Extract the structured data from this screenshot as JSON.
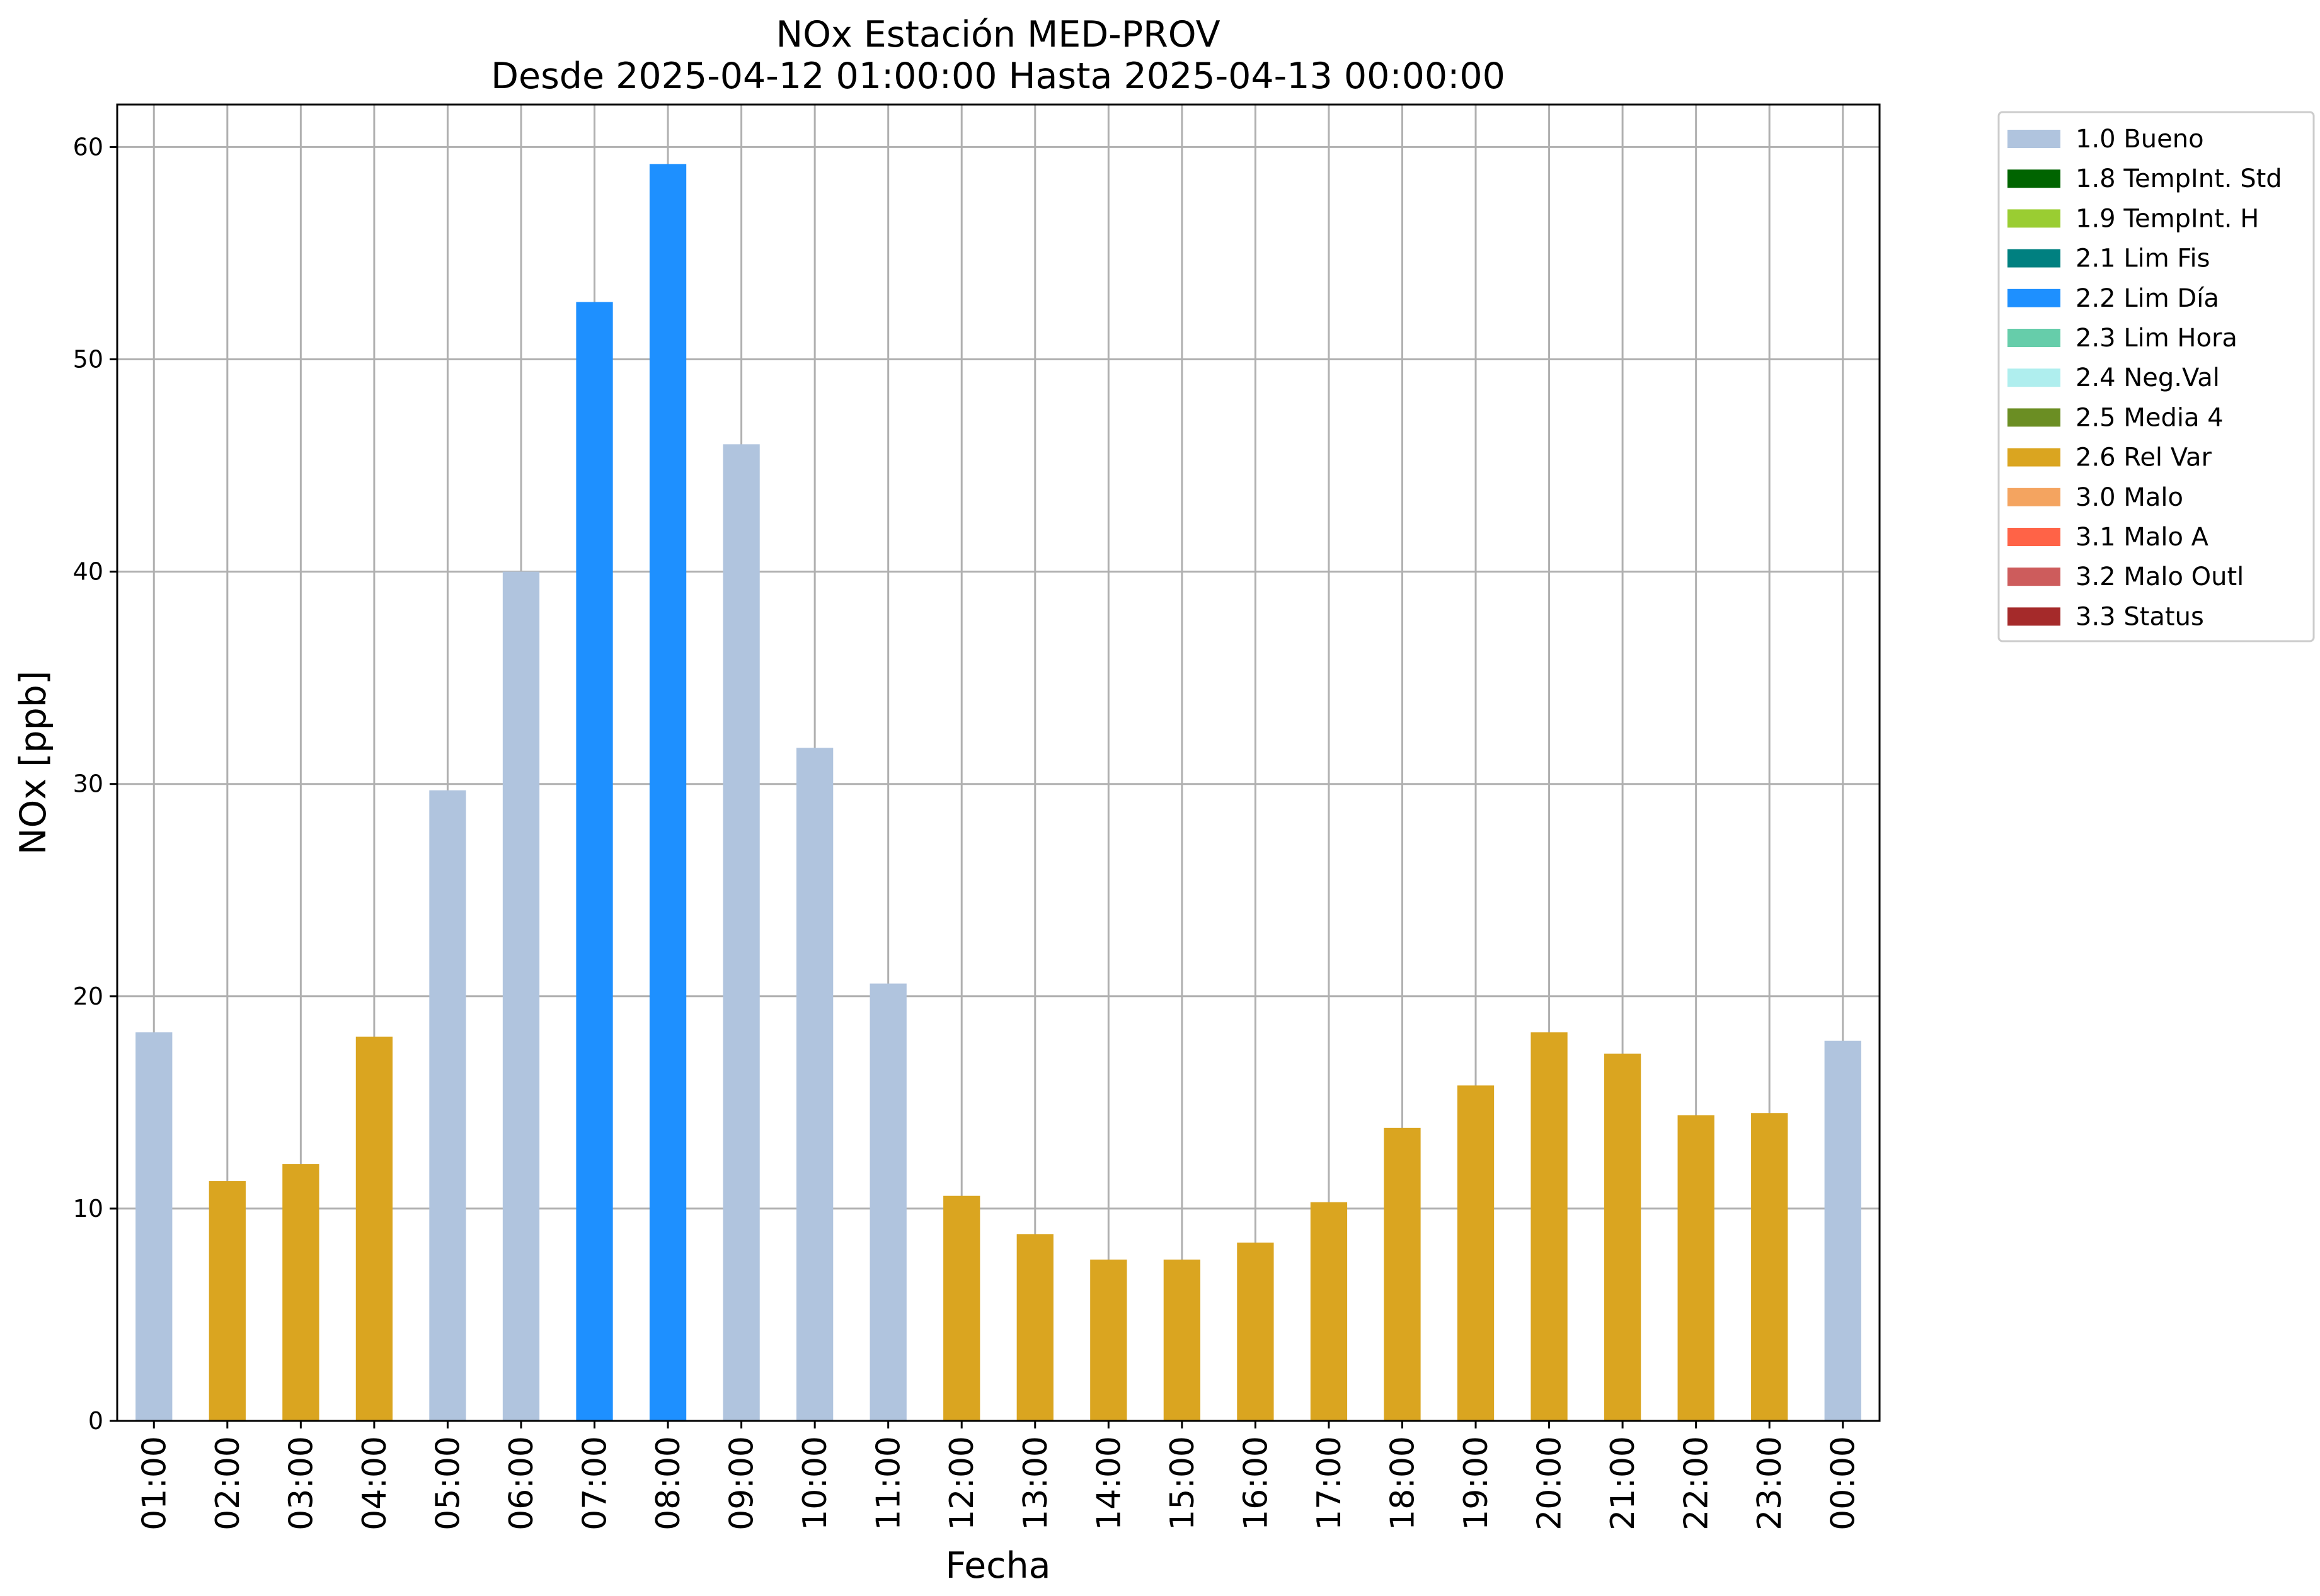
{
  "chart_data": {
    "type": "bar",
    "title": "NOx Estación MED-PROV",
    "subtitle": "Desde 2025-04-12 01:00:00 Hasta 2025-04-13 00:00:00",
    "xlabel": "Fecha",
    "ylabel": "NOx [ppb]",
    "ylim": [
      0,
      62
    ],
    "yticks": [
      0,
      10,
      20,
      30,
      40,
      50,
      60
    ],
    "grid": true,
    "legend_position": "outside-top-right",
    "categories": [
      "01:00",
      "02:00",
      "03:00",
      "04:00",
      "05:00",
      "06:00",
      "07:00",
      "08:00",
      "09:00",
      "10:00",
      "11:00",
      "12:00",
      "13:00",
      "14:00",
      "15:00",
      "16:00",
      "17:00",
      "18:00",
      "19:00",
      "20:00",
      "21:00",
      "22:00",
      "23:00",
      "00:00"
    ],
    "values": [
      18.3,
      11.3,
      12.1,
      18.1,
      29.7,
      40.0,
      52.7,
      59.2,
      46.0,
      31.7,
      20.6,
      10.6,
      8.8,
      7.6,
      7.6,
      8.4,
      10.3,
      13.8,
      15.8,
      18.3,
      17.3,
      14.4,
      14.5,
      17.9
    ],
    "flags": [
      "1.0 Bueno",
      "2.6 Rel Var",
      "2.6 Rel Var",
      "2.6 Rel Var",
      "1.0 Bueno",
      "1.0 Bueno",
      "2.2 Lim Día",
      "2.2 Lim Día",
      "1.0 Bueno",
      "1.0 Bueno",
      "1.0 Bueno",
      "2.6 Rel Var",
      "2.6 Rel Var",
      "2.6 Rel Var",
      "2.6 Rel Var",
      "2.6 Rel Var",
      "2.6 Rel Var",
      "2.6 Rel Var",
      "2.6 Rel Var",
      "2.6 Rel Var",
      "2.6 Rel Var",
      "2.6 Rel Var",
      "2.6 Rel Var",
      "1.0 Bueno"
    ],
    "legend": [
      {
        "label": "1.0 Bueno",
        "color": "#b0c4de"
      },
      {
        "label": "1.8 TempInt. Std",
        "color": "#006400"
      },
      {
        "label": "1.9 TempInt. H",
        "color": "#9acd32"
      },
      {
        "label": "2.1 Lim Fis",
        "color": "#008080"
      },
      {
        "label": "2.2 Lim Día",
        "color": "#1e90ff"
      },
      {
        "label": "2.3 Lim Hora",
        "color": "#66cdaa"
      },
      {
        "label": "2.4 Neg.Val",
        "color": "#afeeee"
      },
      {
        "label": "2.5 Media 4",
        "color": "#6b8e23"
      },
      {
        "label": "2.6 Rel Var",
        "color": "#daa520"
      },
      {
        "label": "3.0 Malo",
        "color": "#f4a460"
      },
      {
        "label": "3.1 Malo A",
        "color": "#ff6347"
      },
      {
        "label": "3.2 Malo Outl",
        "color": "#cd5c5c"
      },
      {
        "label": "3.3 Status",
        "color": "#a52a2a"
      }
    ]
  }
}
